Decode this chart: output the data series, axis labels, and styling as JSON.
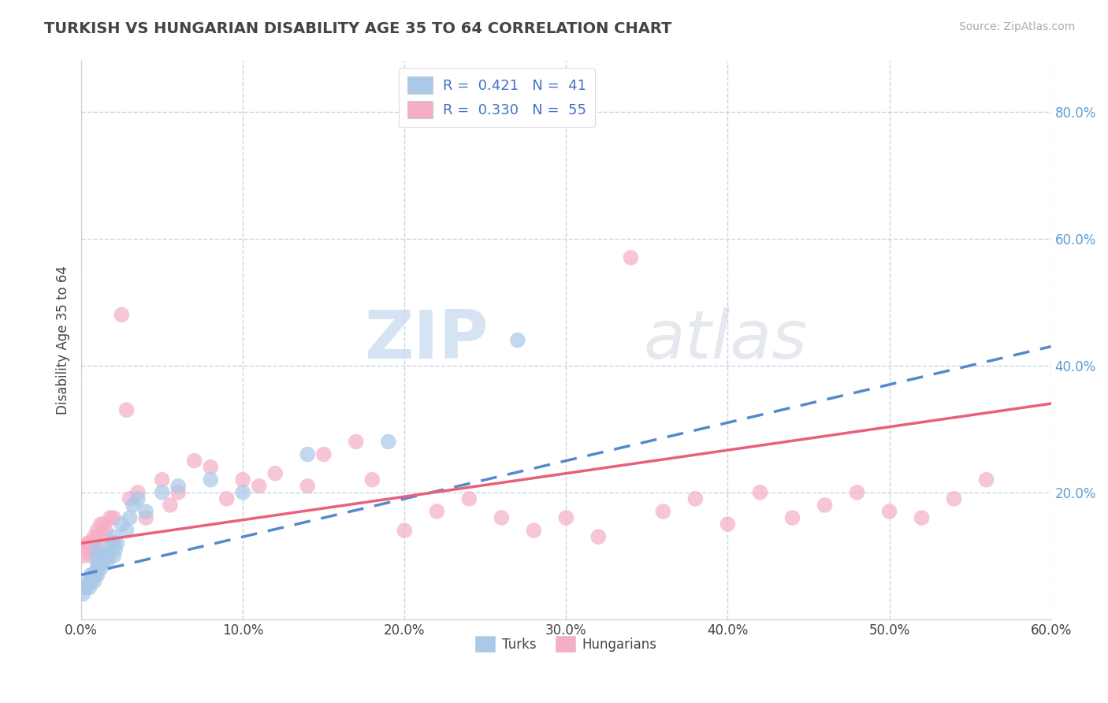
{
  "title": "TURKISH VS HUNGARIAN DISABILITY AGE 35 TO 64 CORRELATION CHART",
  "source": "Source: ZipAtlas.com",
  "xlabel": "",
  "ylabel": "Disability Age 35 to 64",
  "xlim": [
    0.0,
    0.6
  ],
  "ylim": [
    0.0,
    0.88
  ],
  "xtick_labels": [
    "0.0%",
    "10.0%",
    "20.0%",
    "30.0%",
    "40.0%",
    "50.0%",
    "60.0%"
  ],
  "xtick_values": [
    0.0,
    0.1,
    0.2,
    0.3,
    0.4,
    0.5,
    0.6
  ],
  "ytick_labels": [
    "20.0%",
    "40.0%",
    "60.0%",
    "80.0%"
  ],
  "ytick_values": [
    0.2,
    0.4,
    0.6,
    0.8
  ],
  "turks_color": "#aac8e8",
  "hungarians_color": "#f5afc5",
  "turks_line_color": "#5588cc",
  "hungarians_line_color": "#e8607a",
  "legend_label_turks": "R =  0.421   N =  41",
  "legend_label_hungarians": "R =  0.330   N =  55",
  "watermark_zip": "ZIP",
  "watermark_atlas": "atlas",
  "background_color": "#ffffff",
  "grid_color": "#c8d4e8",
  "turks_scatter_x": [
    0.001,
    0.002,
    0.003,
    0.004,
    0.005,
    0.006,
    0.006,
    0.007,
    0.008,
    0.009,
    0.01,
    0.01,
    0.01,
    0.01,
    0.01,
    0.01,
    0.012,
    0.013,
    0.014,
    0.015,
    0.016,
    0.017,
    0.018,
    0.019,
    0.02,
    0.02,
    0.021,
    0.022,
    0.025,
    0.028,
    0.03,
    0.032,
    0.035,
    0.04,
    0.05,
    0.06,
    0.08,
    0.1,
    0.14,
    0.19,
    0.27
  ],
  "turks_scatter_y": [
    0.04,
    0.05,
    0.05,
    0.06,
    0.05,
    0.06,
    0.07,
    0.07,
    0.06,
    0.07,
    0.07,
    0.08,
    0.08,
    0.09,
    0.1,
    0.11,
    0.08,
    0.09,
    0.1,
    0.1,
    0.09,
    0.1,
    0.11,
    0.12,
    0.1,
    0.13,
    0.11,
    0.12,
    0.15,
    0.14,
    0.16,
    0.18,
    0.19,
    0.17,
    0.2,
    0.21,
    0.22,
    0.2,
    0.26,
    0.28,
    0.44
  ],
  "hungarians_scatter_x": [
    0.001,
    0.002,
    0.004,
    0.005,
    0.006,
    0.007,
    0.008,
    0.009,
    0.01,
    0.01,
    0.01,
    0.012,
    0.013,
    0.014,
    0.015,
    0.018,
    0.02,
    0.02,
    0.025,
    0.028,
    0.03,
    0.035,
    0.04,
    0.05,
    0.055,
    0.06,
    0.07,
    0.08,
    0.09,
    0.1,
    0.11,
    0.12,
    0.14,
    0.15,
    0.17,
    0.18,
    0.2,
    0.22,
    0.24,
    0.26,
    0.28,
    0.3,
    0.32,
    0.34,
    0.36,
    0.38,
    0.4,
    0.42,
    0.44,
    0.46,
    0.48,
    0.5,
    0.52,
    0.54,
    0.56
  ],
  "hungarians_scatter_y": [
    0.1,
    0.11,
    0.12,
    0.12,
    0.1,
    0.11,
    0.13,
    0.12,
    0.11,
    0.13,
    0.14,
    0.15,
    0.13,
    0.15,
    0.14,
    0.16,
    0.12,
    0.16,
    0.48,
    0.33,
    0.19,
    0.2,
    0.16,
    0.22,
    0.18,
    0.2,
    0.25,
    0.24,
    0.19,
    0.22,
    0.21,
    0.23,
    0.21,
    0.26,
    0.28,
    0.22,
    0.14,
    0.17,
    0.19,
    0.16,
    0.14,
    0.16,
    0.13,
    0.57,
    0.17,
    0.19,
    0.15,
    0.2,
    0.16,
    0.18,
    0.2,
    0.17,
    0.16,
    0.19,
    0.22
  ],
  "turks_trend_x": [
    0.0,
    0.6
  ],
  "turks_trend_y": [
    0.07,
    0.43
  ],
  "hungarians_trend_x": [
    0.0,
    0.6
  ],
  "hungarians_trend_y": [
    0.12,
    0.34
  ]
}
